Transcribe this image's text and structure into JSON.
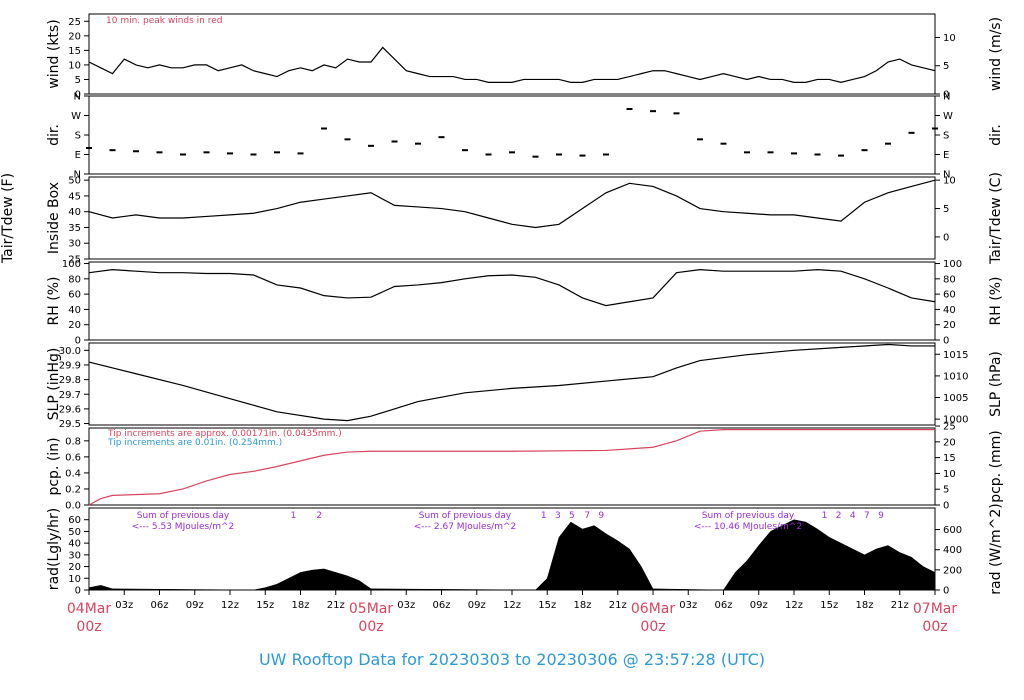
{
  "colors": {
    "peak": "#d9455f",
    "precip_red": "#d9455f",
    "precip_blue": "#2c9ad6",
    "rad_purple": "#9a2cd6",
    "footer": "#2c9ad6",
    "day_label": "#d9455f"
  },
  "footer_title": "UW Rooftop Data for 20230303  to  20230306 @ 23:57:28  (UTC)",
  "x_axis": {
    "hour_ticks": [
      "03z",
      "06z",
      "09z",
      "12z",
      "15z",
      "18z",
      "21z",
      "05Mar",
      "03z",
      "06z",
      "09z",
      "12z",
      "15z",
      "18z",
      "21z",
      "06Mar",
      "03z",
      "06z",
      "09z",
      "12z",
      "15z",
      "18z",
      "21z"
    ],
    "day_labels": [
      {
        "date": "04Mar",
        "time": "00z"
      },
      {
        "date": "05Mar",
        "time": "00z"
      },
      {
        "date": "06Mar",
        "time": "00z"
      },
      {
        "date": "07Mar",
        "time": "00z"
      }
    ],
    "hours_total": 72
  },
  "chart_data": [
    {
      "type": "line",
      "id": "wind",
      "ylabel_left": "wind (kts)",
      "ylabel_right": "wind (m/s)",
      "yticks_left": [
        0,
        5,
        10,
        15,
        20,
        25
      ],
      "yticks_right": [
        0,
        5,
        10
      ],
      "ylim": [
        0,
        27.5
      ],
      "right_scale": 0.5144,
      "annotation": "10 min. peak winds in red",
      "series": [
        {
          "x": [
            0,
            1,
            2,
            3,
            4,
            5,
            6,
            7,
            8,
            9,
            10,
            11,
            12,
            13,
            14,
            15,
            16,
            17,
            18,
            19,
            20,
            21,
            22,
            23,
            24,
            25,
            26,
            27,
            28,
            29,
            30,
            31,
            32,
            33,
            34,
            35,
            36,
            37,
            38,
            39,
            40,
            41,
            42,
            43,
            44,
            45,
            46,
            47,
            48,
            49,
            50,
            51,
            52,
            53,
            54,
            55,
            56,
            57,
            58,
            59,
            60,
            61,
            62,
            63,
            64,
            65,
            66,
            67,
            68,
            69,
            70,
            71,
            72
          ],
          "values": [
            11,
            9,
            7,
            12,
            10,
            9,
            10,
            9,
            9,
            10,
            10,
            8,
            9,
            10,
            8,
            7,
            6,
            8,
            9,
            8,
            10,
            9,
            12,
            11,
            11,
            16,
            12,
            8,
            7,
            6,
            6,
            6,
            5,
            5,
            4,
            4,
            4,
            5,
            5,
            5,
            5,
            4,
            4,
            5,
            5,
            5,
            6,
            7,
            8,
            8,
            7,
            6,
            5,
            6,
            7,
            6,
            5,
            6,
            5,
            5,
            4,
            4,
            5,
            5,
            4,
            5,
            6,
            8,
            11,
            12,
            10,
            9,
            8
          ]
        }
      ]
    },
    {
      "type": "scatter",
      "id": "direction",
      "ylabel_left": "dir.",
      "ylabel_right": "dir.",
      "yticks_left": [
        "N",
        "E",
        "S",
        "W",
        "N"
      ],
      "yticks_right": [
        "N",
        "E",
        "S",
        "W",
        "N"
      ],
      "ylim": [
        0,
        360
      ],
      "series": [
        {
          "x": [
            0,
            2,
            4,
            6,
            8,
            10,
            12,
            14,
            16,
            18,
            20,
            22,
            24,
            26,
            28,
            30,
            32,
            34,
            36,
            38,
            40,
            42,
            44,
            46,
            48,
            50,
            52,
            54,
            56,
            58,
            60,
            62,
            64,
            66,
            68,
            70,
            72
          ],
          "values": [
            120,
            110,
            105,
            100,
            90,
            100,
            95,
            90,
            100,
            95,
            210,
            160,
            130,
            150,
            140,
            170,
            110,
            90,
            100,
            80,
            90,
            85,
            90,
            300,
            290,
            280,
            160,
            140,
            100,
            100,
            95,
            90,
            85,
            110,
            140,
            190,
            210
          ]
        }
      ]
    },
    {
      "type": "line",
      "id": "temperature",
      "ylabel_left": "Tair/Tdew (F)",
      "ylabel_left2": "Inside Box",
      "ylabel_right": "Tair/Tdew (C)",
      "yticks_left": [
        25,
        30,
        35,
        40,
        45,
        50
      ],
      "yticks_right": [
        0,
        5,
        10
      ],
      "ylim": [
        25,
        51
      ],
      "series": [
        {
          "x": [
            0,
            2,
            4,
            6,
            8,
            10,
            12,
            14,
            16,
            18,
            20,
            22,
            24,
            26,
            28,
            30,
            32,
            34,
            36,
            38,
            40,
            42,
            44,
            46,
            48,
            50,
            52,
            54,
            56,
            58,
            60,
            62,
            64,
            66,
            68,
            70,
            72
          ],
          "values": [
            40,
            38,
            39,
            38,
            38,
            38.5,
            39,
            39.5,
            41,
            43,
            44,
            45,
            46,
            42,
            41.5,
            41,
            40,
            38,
            36,
            35,
            36,
            41,
            46,
            49,
            48,
            45,
            41,
            40,
            39.5,
            39,
            39,
            38,
            37,
            43,
            46,
            48,
            50
          ]
        }
      ]
    },
    {
      "type": "line",
      "id": "humidity",
      "ylabel_left": "RH (%)",
      "ylabel_right": "RH (%)",
      "yticks_left": [
        0,
        20,
        40,
        60,
        80,
        100
      ],
      "yticks_right": [
        0,
        20,
        40,
        60,
        80,
        100
      ],
      "ylim": [
        0,
        102
      ],
      "series": [
        {
          "x": [
            0,
            2,
            4,
            6,
            8,
            10,
            12,
            14,
            16,
            18,
            20,
            22,
            24,
            26,
            28,
            30,
            32,
            34,
            36,
            38,
            40,
            42,
            44,
            46,
            48,
            50,
            52,
            54,
            56,
            58,
            60,
            62,
            64,
            66,
            68,
            70,
            72
          ],
          "values": [
            88,
            92,
            90,
            88,
            88,
            87,
            87,
            85,
            72,
            68,
            58,
            55,
            56,
            70,
            72,
            75,
            80,
            84,
            85,
            82,
            72,
            55,
            45,
            50,
            55,
            88,
            92,
            90,
            90,
            90,
            90,
            92,
            90,
            80,
            68,
            55,
            50
          ]
        }
      ]
    },
    {
      "type": "line",
      "id": "pressure",
      "ylabel_left": "SLP (inHg)",
      "ylabel_right": "SLP (hPa)",
      "yticks_left": [
        "29.5",
        "29.6",
        "29.7",
        "29.8",
        "29.9",
        "30.0"
      ],
      "yticks_right": [
        1000,
        1005,
        1010,
        1015
      ],
      "ylim": [
        29.49,
        30.05
      ],
      "series": [
        {
          "x": [
            0,
            4,
            8,
            12,
            16,
            20,
            22,
            24,
            28,
            32,
            36,
            40,
            44,
            48,
            50,
            52,
            56,
            60,
            64,
            68,
            70,
            72
          ],
          "values": [
            29.92,
            29.84,
            29.76,
            29.67,
            29.58,
            29.53,
            29.52,
            29.55,
            29.65,
            29.71,
            29.74,
            29.76,
            29.79,
            29.82,
            29.88,
            29.93,
            29.97,
            30.0,
            30.02,
            30.04,
            30.03,
            30.03
          ]
        }
      ]
    },
    {
      "type": "line",
      "id": "precip",
      "ylabel_left": "pcp. (in)",
      "ylabel_right": "pcp. (mm)",
      "yticks_left": [
        "0.0",
        "0.2",
        "0.4",
        "0.6",
        "0.8"
      ],
      "yticks_right": [
        0,
        5,
        10,
        15,
        20,
        25
      ],
      "ylim": [
        0,
        0.96
      ],
      "note_red": "Tip increments are approx. 0.00171in. (0.0435mm.)",
      "note_blue": "Tip increments are 0.01in. (0.254mm.)",
      "series": [
        {
          "x": [
            0,
            1,
            2,
            6,
            8,
            10,
            12,
            14,
            16,
            18,
            20,
            22,
            24,
            36,
            44,
            46,
            48,
            50,
            52,
            54,
            60,
            72
          ],
          "values": [
            0,
            0.08,
            0.12,
            0.14,
            0.2,
            0.3,
            0.38,
            0.42,
            0.48,
            0.55,
            0.62,
            0.66,
            0.67,
            0.67,
            0.68,
            0.7,
            0.72,
            0.8,
            0.92,
            0.94,
            0.94,
            0.94
          ]
        }
      ]
    },
    {
      "type": "area",
      "id": "radiation",
      "ylabel_left": "rad(Lgly/hr)",
      "ylabel_right": "rad (W/m^2)",
      "yticks_left": [
        0,
        10,
        20,
        30,
        40,
        50,
        60
      ],
      "yticks_right": [
        0,
        200,
        400,
        600
      ],
      "ylim": [
        0,
        70
      ],
      "day_sums": [
        {
          "label": "Sum of previous day",
          "value": "<--- 5.53 MJoules/m^2"
        },
        {
          "label": "Sum of previous day",
          "value": "<--- 2.67 MJoules/m^2"
        },
        {
          "label": "Sum of previous day",
          "value": "<--- 10.46 MJoules/m^2"
        }
      ],
      "markers": [
        {
          "x": 17.4,
          "text": "1"
        },
        {
          "x": 19.6,
          "text": "2"
        },
        {
          "x": 38.7,
          "text": "1"
        },
        {
          "x": 39.9,
          "text": "3"
        },
        {
          "x": 41.1,
          "text": "5"
        },
        {
          "x": 42.4,
          "text": "7"
        },
        {
          "x": 43.6,
          "text": "9"
        },
        {
          "x": 62.6,
          "text": "1"
        },
        {
          "x": 63.8,
          "text": "2"
        },
        {
          "x": 65.0,
          "text": "4"
        },
        {
          "x": 66.2,
          "text": "7"
        },
        {
          "x": 67.4,
          "text": "9"
        }
      ],
      "series": [
        {
          "x": [
            0,
            1,
            2,
            14,
            15,
            16,
            17,
            18,
            19,
            20,
            21,
            22,
            23,
            24,
            38,
            39,
            40,
            41,
            42,
            43,
            44,
            45,
            46,
            47,
            48,
            54,
            55,
            56,
            57,
            58,
            59,
            60,
            61,
            62,
            63,
            64,
            65,
            66,
            67,
            68,
            69,
            70,
            71,
            72
          ],
          "values": [
            2,
            4,
            1,
            0,
            2,
            5,
            10,
            15,
            17,
            18,
            15,
            12,
            8,
            1,
            0,
            10,
            45,
            58,
            52,
            55,
            48,
            42,
            35,
            20,
            1,
            0,
            15,
            25,
            38,
            50,
            55,
            60,
            58,
            52,
            45,
            40,
            35,
            30,
            35,
            38,
            32,
            28,
            20,
            15
          ]
        }
      ]
    }
  ]
}
